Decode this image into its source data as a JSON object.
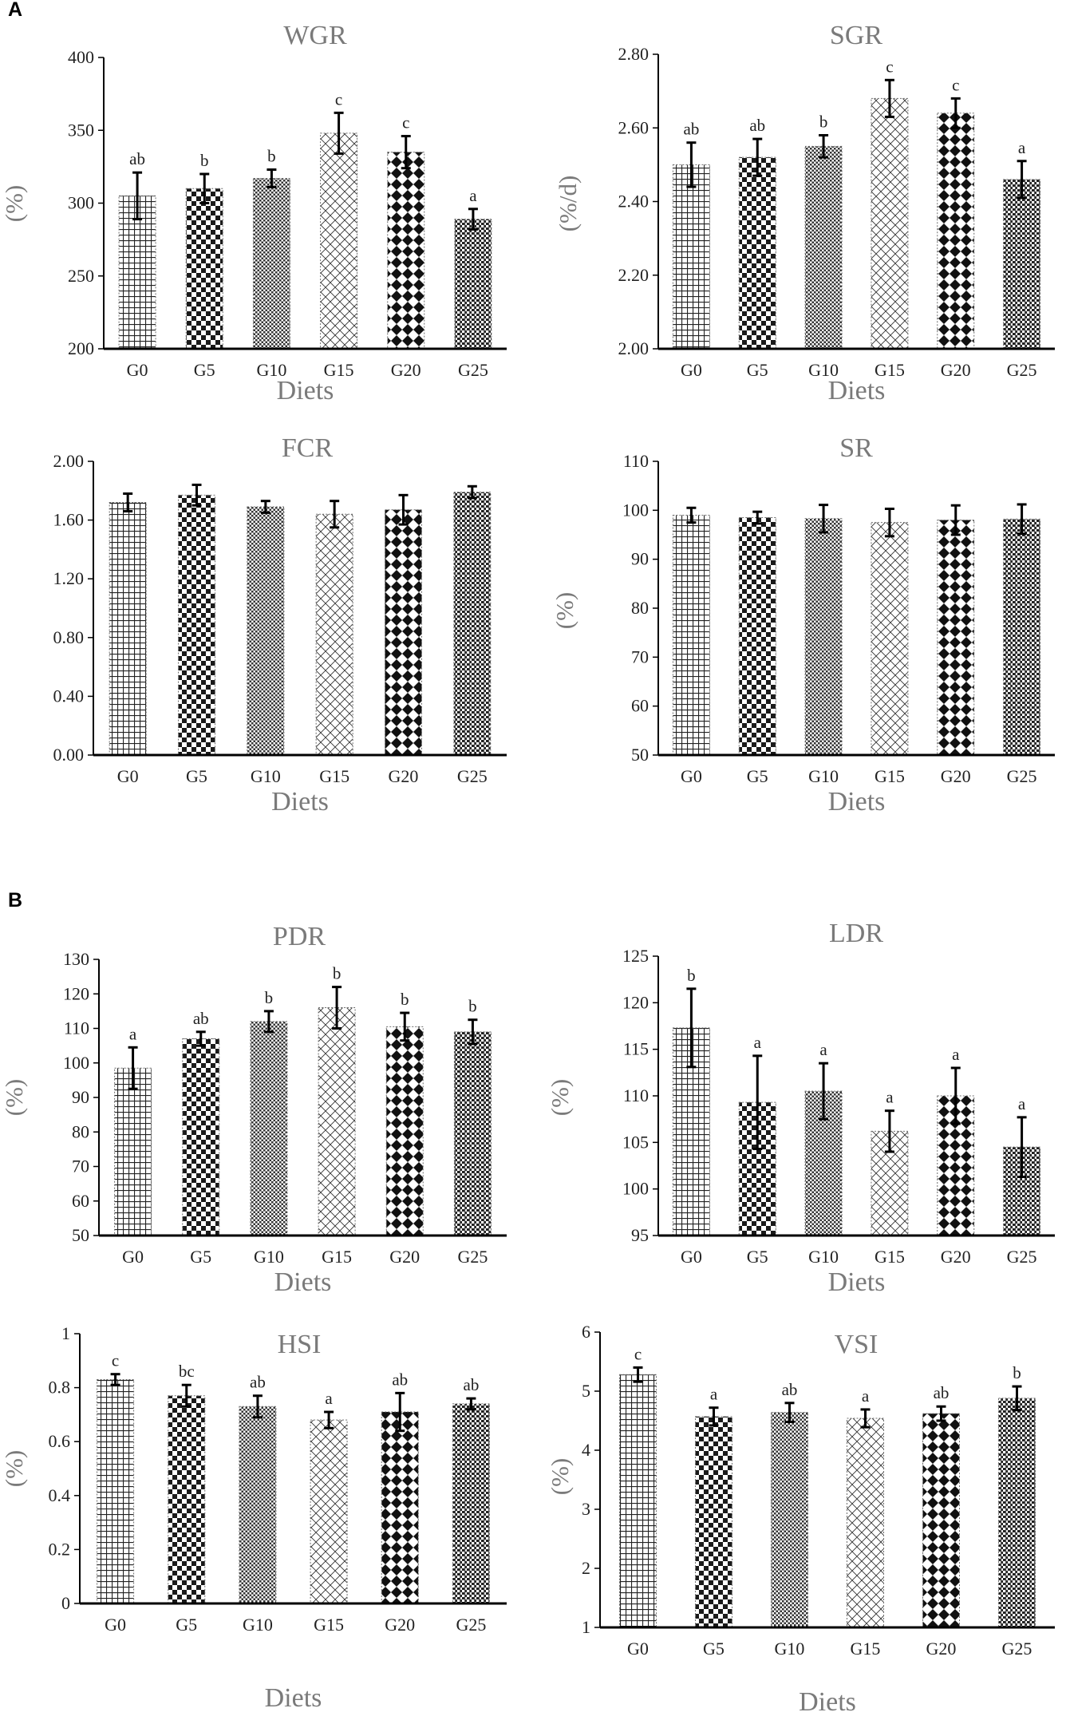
{
  "panel_labels": {
    "A": "A",
    "B": "B"
  },
  "colors": {
    "bar_stroke": "#6e6e6e",
    "pattern": "#222222",
    "axis": "#000000",
    "label_gray": "#7a7a7a"
  },
  "chart_data": [
    {
      "type": "bar",
      "title": "WGR",
      "ylabel": "(%)",
      "xlabel": "Diets",
      "categories": [
        "G0",
        "G5",
        "G10",
        "G15",
        "G20",
        "G25"
      ],
      "values": [
        305,
        310,
        317,
        348,
        335,
        289
      ],
      "errors": [
        16,
        10,
        6,
        14,
        11,
        7
      ],
      "labels": [
        "ab",
        "b",
        "b",
        "c",
        "c",
        "a"
      ],
      "ylim": [
        200,
        400
      ],
      "yticks": [
        "200",
        "250",
        "300",
        "350",
        "400"
      ]
    },
    {
      "type": "bar",
      "title": "SGR",
      "ylabel": "(%/d)",
      "xlabel": "Diets",
      "categories": [
        "G0",
        "G5",
        "G10",
        "G15",
        "G20",
        "G25"
      ],
      "values": [
        2.5,
        2.52,
        2.55,
        2.68,
        2.64,
        2.46
      ],
      "errors": [
        0.06,
        0.05,
        0.03,
        0.05,
        0.04,
        0.05
      ],
      "labels": [
        "ab",
        "ab",
        "b",
        "c",
        "c",
        "a"
      ],
      "ylim": [
        2.0,
        2.8
      ],
      "yticks": [
        "2.00",
        "2.20",
        "2.40",
        "2.60",
        "2.80"
      ]
    },
    {
      "type": "bar",
      "title": "FCR",
      "ylabel": "",
      "xlabel": "Diets",
      "categories": [
        "G0",
        "G5",
        "G10",
        "G15",
        "G20",
        "G25"
      ],
      "values": [
        1.72,
        1.77,
        1.69,
        1.64,
        1.67,
        1.79
      ],
      "errors": [
        0.06,
        0.07,
        0.04,
        0.09,
        0.1,
        0.04
      ],
      "labels": [
        "",
        "",
        "",
        "",
        "",
        ""
      ],
      "ylim": [
        0,
        2.0
      ],
      "yticks": [
        "0.00",
        "0.40",
        "0.80",
        "1.20",
        "1.60",
        "2.00"
      ]
    },
    {
      "type": "bar",
      "title": "SR",
      "ylabel": "(%)",
      "xlabel": "Diets",
      "categories": [
        "G0",
        "G5",
        "G10",
        "G15",
        "G20",
        "G25"
      ],
      "values": [
        99,
        98.5,
        98.3,
        97.5,
        98,
        98.2
      ],
      "errors": [
        1.5,
        1.2,
        2.8,
        2.8,
        3.0,
        3.0
      ],
      "labels": [
        "",
        "",
        "",
        "",
        "",
        ""
      ],
      "ylim": [
        50,
        110
      ],
      "yticks": [
        "50",
        "60",
        "70",
        "80",
        "90",
        "100",
        "110"
      ]
    },
    {
      "type": "bar",
      "title": "PDR",
      "ylabel": "(%)",
      "xlabel": "Diets",
      "categories": [
        "G0",
        "G5",
        "G10",
        "G15",
        "G20",
        "G25"
      ],
      "values": [
        98.5,
        107,
        112,
        116,
        110.5,
        109
      ],
      "errors": [
        6,
        2,
        3,
        6,
        4,
        3.5
      ],
      "labels": [
        "a",
        "ab",
        "b",
        "b",
        "b",
        "b"
      ],
      "ylim": [
        50,
        130
      ],
      "yticks": [
        "50",
        "60",
        "70",
        "80",
        "90",
        "100",
        "110",
        "120",
        "130"
      ]
    },
    {
      "type": "bar",
      "title": "LDR",
      "ylabel": "(%)",
      "xlabel": "Diets",
      "categories": [
        "G0",
        "G5",
        "G10",
        "G15",
        "G20",
        "G25"
      ],
      "values": [
        117.3,
        109.3,
        110.5,
        106.2,
        110,
        104.5
      ],
      "errors": [
        4.2,
        5,
        3,
        2.2,
        3,
        3.2
      ],
      "labels": [
        "b",
        "a",
        "a",
        "a",
        "a",
        "a"
      ],
      "ylim": [
        95,
        125
      ],
      "yticks": [
        "95",
        "100",
        "105",
        "110",
        "115",
        "120",
        "125"
      ]
    },
    {
      "type": "bar",
      "title": "HSI",
      "ylabel": "(%)",
      "xlabel": "Diets",
      "categories": [
        "G0",
        "G5",
        "G10",
        "G15",
        "G20",
        "G25"
      ],
      "values": [
        0.83,
        0.77,
        0.73,
        0.68,
        0.71,
        0.74
      ],
      "errors": [
        0.02,
        0.04,
        0.04,
        0.03,
        0.07,
        0.02
      ],
      "labels": [
        "c",
        "bc",
        "ab",
        "a",
        "ab",
        "ab"
      ],
      "ylim": [
        0,
        1
      ],
      "yticks": [
        "0",
        "0.2",
        "0.4",
        "0.6",
        "0.8",
        "1"
      ]
    },
    {
      "type": "bar",
      "title": "VSI",
      "ylabel": "(%)",
      "xlabel": "Diets",
      "categories": [
        "G0",
        "G5",
        "G10",
        "G15",
        "G20",
        "G25"
      ],
      "values": [
        5.28,
        4.57,
        4.64,
        4.54,
        4.62,
        4.88
      ],
      "errors": [
        0.12,
        0.15,
        0.16,
        0.15,
        0.12,
        0.2
      ],
      "labels": [
        "c",
        "a",
        "ab",
        "a",
        "ab",
        "b"
      ],
      "ylim": [
        1,
        6
      ],
      "yticks": [
        "1",
        "2",
        "3",
        "4",
        "5",
        "6"
      ]
    }
  ]
}
